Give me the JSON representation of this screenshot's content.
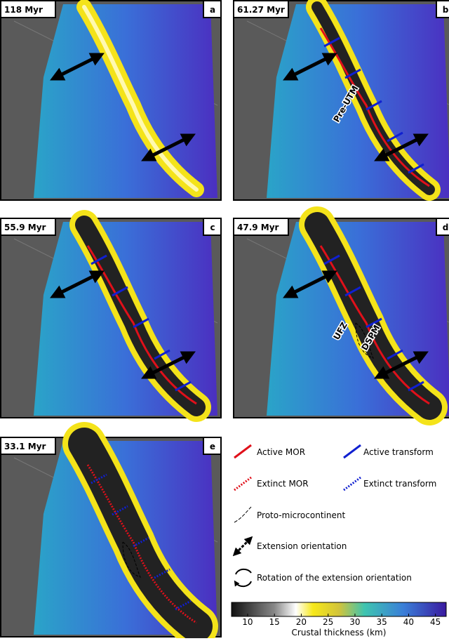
{
  "panels": [
    {
      "label": "118 Myr",
      "letter": "a"
    },
    {
      "label": "61.27 Myr",
      "letter": "b",
      "annotations": [
        "Pre-UTM"
      ]
    },
    {
      "label": "55.9 Myr",
      "letter": "c"
    },
    {
      "label": "47.9 Myr",
      "letter": "d",
      "annotations": [
        "UFZ",
        "DSPM"
      ]
    },
    {
      "label": "33.1 Myr",
      "letter": "e"
    }
  ],
  "legend": [
    "Active MOR",
    "Active transform",
    "Extinct MOR",
    "Extinct transform",
    "Proto-microcontinent",
    "Extension orientation",
    "Rotation of the extension orientation"
  ],
  "colorbar": {
    "label": "Crustal thickness (km)",
    "range": [
      7,
      47
    ],
    "ticks": [
      10,
      15,
      20,
      25,
      30,
      35,
      40,
      45
    ]
  }
}
